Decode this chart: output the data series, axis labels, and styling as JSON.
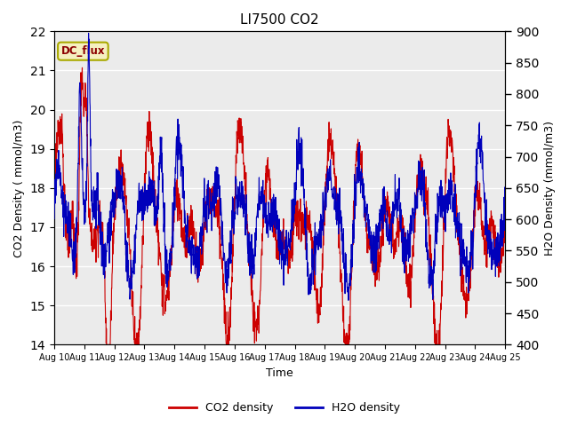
{
  "title": "LI7500 CO2",
  "xlabel": "Time",
  "ylabel_left": "CO2 Density ( mmol/m3)",
  "ylabel_right": "H2O Density (mmol/m3)",
  "ylim_left": [
    14.0,
    22.0
  ],
  "ylim_right": [
    400,
    900
  ],
  "yticks_left": [
    14.0,
    15.0,
    16.0,
    17.0,
    18.0,
    19.0,
    20.0,
    21.0,
    22.0
  ],
  "yticks_right": [
    400,
    450,
    500,
    550,
    600,
    650,
    700,
    750,
    800,
    850,
    900
  ],
  "xtick_labels": [
    "Aug 10",
    "Aug 11",
    "Aug 12",
    "Aug 13",
    "Aug 14",
    "Aug 15",
    "Aug 16",
    "Aug 17",
    "Aug 18",
    "Aug 19",
    "Aug 20",
    "Aug 21",
    "Aug 22",
    "Aug 23",
    "Aug 24",
    "Aug 25"
  ],
  "label_text": "DC_flux",
  "label_fg": "#8B0000",
  "label_bg": "#F5F0C0",
  "label_border": "#AAAA00",
  "co2_color": "#CC0000",
  "h2o_color": "#0000BB",
  "legend_co2": "CO2 density",
  "legend_h2o": "H2O density",
  "bg_color": "#EBEBEB",
  "grid_color": "#FFFFFF",
  "line_width": 0.8,
  "n_points": 2000
}
